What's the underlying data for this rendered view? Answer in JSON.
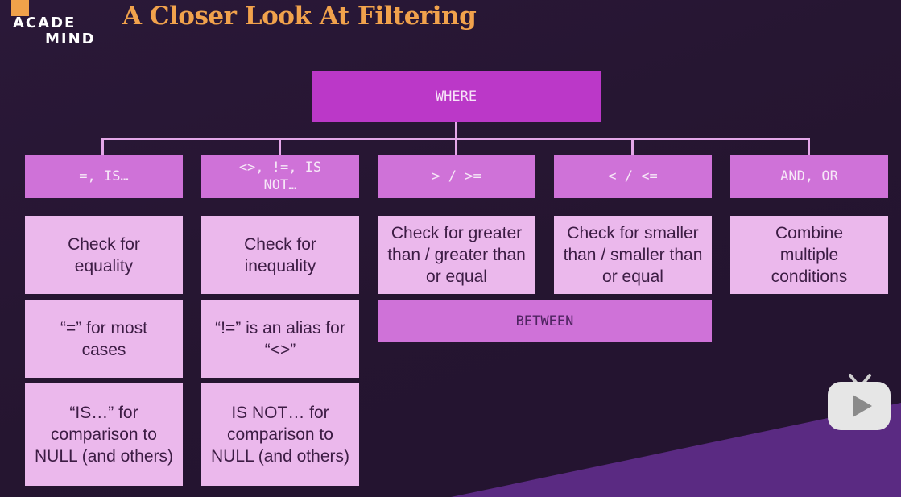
{
  "logo": {
    "line1": "ACADE",
    "line2": "MIND"
  },
  "slide_title": "A Closer Look At Filtering",
  "root": {
    "label": "WHERE"
  },
  "operators": [
    {
      "label": "=, IS…"
    },
    {
      "label": "<>, !=, IS NOT…"
    },
    {
      "label": "> / >="
    },
    {
      "label": "< / <="
    },
    {
      "label": "AND, OR"
    }
  ],
  "descriptions": {
    "equality": "Check for equality",
    "inequality": "Check for inequality",
    "greater": "Check for greater than / greater than or equal",
    "smaller": "Check for smaller than / smaller than or equal",
    "combine": "Combine multiple conditions"
  },
  "notes": {
    "eq_most_cases": "“=” for most cases",
    "neq_alias": "“!=” is an alias for “<>”",
    "is_null": "“IS…” for comparison to NULL (and others)",
    "is_not_null": "IS NOT… for comparison to NULL (and others)"
  },
  "between": {
    "label": "BETWEEN"
  },
  "colors": {
    "background": "#271633",
    "accent_title": "#f1a24c",
    "root_box": "#bb38c8",
    "operator_box": "#cf72d8",
    "description_box": "#ebb8ec",
    "wedge": "#5a2a82"
  },
  "icons": {
    "watermark": "bilibili-play-icon"
  }
}
